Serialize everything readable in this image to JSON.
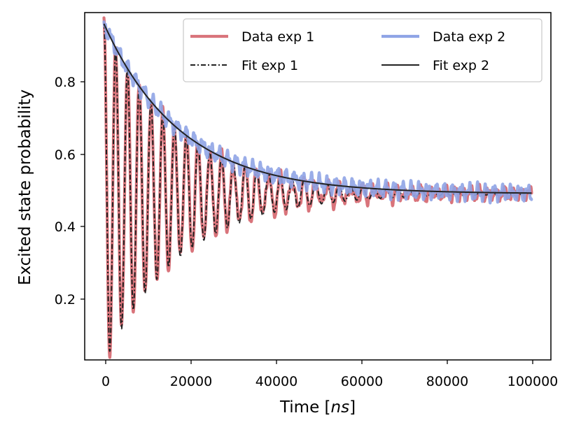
{
  "chart_data": {
    "type": "line",
    "title": "",
    "xlabel_prefix": "Time [",
    "xlabel_unit": "ns",
    "xlabel_suffix": "]",
    "ylabel": "Excited state probability",
    "xlim": [
      -4500,
      104500
    ],
    "ylim": [
      0.04,
      0.97
    ],
    "xticks": [
      0,
      20000,
      40000,
      60000,
      80000,
      100000
    ],
    "xtick_labels": [
      "0",
      "20000",
      "40000",
      "60000",
      "80000",
      "100000"
    ],
    "yticks": [
      0.2,
      0.4,
      0.6,
      0.8
    ],
    "ytick_labels": [
      "0.2",
      "0.4",
      "0.6",
      "0.8"
    ],
    "grid": false,
    "legend_position": "top-right",
    "model": {
      "x_start": 0,
      "x_end": 100000,
      "offset": 0.485,
      "amplitude": 0.455,
      "decay_time": 18000,
      "oscillation_period": 2750,
      "noise_amplitude": 0.022
    },
    "series": [
      {
        "name": "Data exp 1",
        "color": "#d9747b",
        "style": "solid",
        "kind": "oscillating-data"
      },
      {
        "name": "Data exp 2",
        "color": "#8fa4e6",
        "style": "solid",
        "kind": "envelope-data"
      },
      {
        "name": "Fit exp 1",
        "color": "#222222",
        "style": "dashdot",
        "kind": "oscillating-fit"
      },
      {
        "name": "Fit exp 2",
        "color": "#222222",
        "style": "solid",
        "kind": "envelope-fit"
      }
    ]
  }
}
